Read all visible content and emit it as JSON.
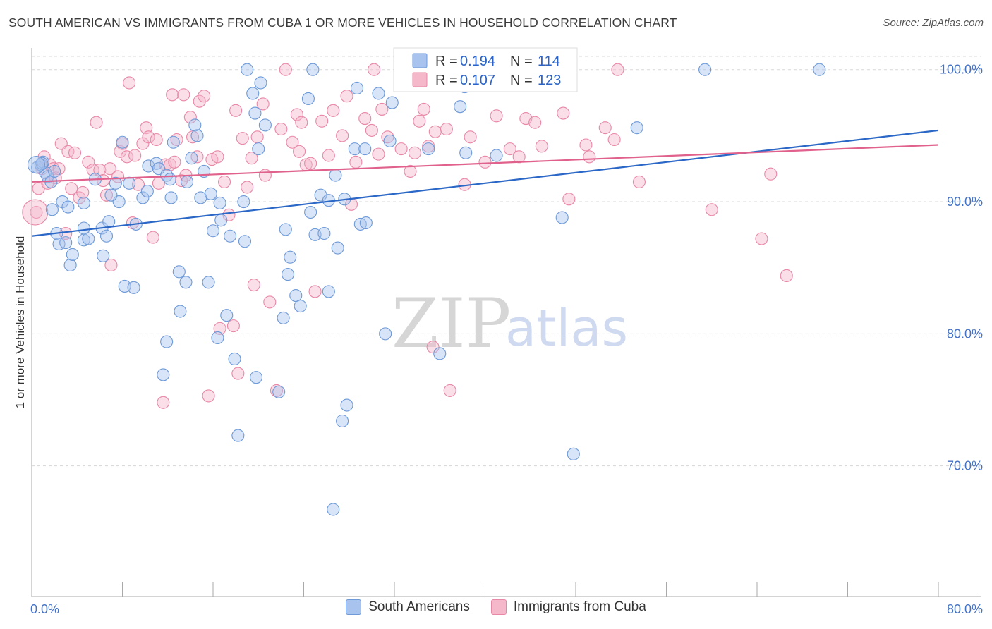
{
  "title": "SOUTH AMERICAN VS IMMIGRANTS FROM CUBA 1 OR MORE VEHICLES IN HOUSEHOLD CORRELATION CHART",
  "source": "Source: ZipAtlas.com",
  "watermark": {
    "zip": "ZIP",
    "atlas": "atlas"
  },
  "colors": {
    "blue_fill": "#a8c4ee",
    "blue_stroke": "#6e9ad8",
    "blue_line": "#2a67c6",
    "pink_fill": "#f5b8cb",
    "pink_stroke": "#e888a6",
    "pink_line": "#e0628c",
    "grid": "#d8d8d8",
    "tick_text": "#4472c4"
  },
  "legend": {
    "series1": "South Americans",
    "series2": "Immigrants from Cuba"
  },
  "stats": {
    "r_label": "R =",
    "n_label": "N =",
    "s1": {
      "r": "0.194",
      "n": "114"
    },
    "s2": {
      "r": "0.107",
      "n": "123"
    }
  },
  "chart_data": {
    "type": "scatter",
    "title": "SOUTH AMERICAN VS IMMIGRANTS FROM CUBA 1 OR MORE VEHICLES IN HOUSEHOLD CORRELATION CHART",
    "xlabel": "",
    "ylabel": "1 or more Vehicles in Household",
    "xlim": [
      0,
      80
    ],
    "ylim": [
      60,
      101
    ],
    "x_tick_labels": [
      "0.0%",
      "80.0%"
    ],
    "y_ticks": [
      70,
      80,
      90,
      100
    ],
    "y_tick_labels": [
      "70.0%",
      "80.0%",
      "90.0%",
      "100.0%"
    ],
    "grid": true,
    "series": [
      {
        "name": "South Americans",
        "color": "#a8c4ee",
        "r": 0.194,
        "n": 114,
        "trend": {
          "x": [
            0,
            80
          ],
          "y": [
            87.4,
            95.4
          ]
        },
        "points": [
          [
            0.5,
            92.6
          ],
          [
            0.8,
            92.8
          ],
          [
            1.0,
            93.0
          ],
          [
            1.2,
            92.2
          ],
          [
            1.4,
            91.9
          ],
          [
            1.7,
            91.5
          ],
          [
            1.8,
            89.4
          ],
          [
            2.2,
            87.6
          ],
          [
            2.4,
            86.8
          ],
          [
            2.7,
            90.0
          ],
          [
            3.0,
            86.9
          ],
          [
            3.2,
            89.6
          ],
          [
            3.4,
            85.2
          ],
          [
            3.6,
            86.0
          ],
          [
            4.6,
            88.0
          ],
          [
            4.6,
            87.1
          ],
          [
            4.6,
            89.9
          ],
          [
            5.6,
            91.7
          ],
          [
            6.2,
            88.0
          ],
          [
            6.3,
            85.9
          ],
          [
            6.6,
            87.4
          ],
          [
            6.8,
            88.5
          ],
          [
            7.4,
            91.4
          ],
          [
            7.7,
            90.0
          ],
          [
            8.0,
            94.5
          ],
          [
            8.2,
            83.6
          ],
          [
            8.6,
            91.4
          ],
          [
            9.0,
            83.5
          ],
          [
            9.2,
            88.3
          ],
          [
            9.8,
            90.3
          ],
          [
            10.2,
            90.8
          ],
          [
            10.3,
            92.7
          ],
          [
            11.0,
            92.9
          ],
          [
            11.2,
            92.5
          ],
          [
            11.9,
            92.0
          ],
          [
            11.9,
            79.4
          ],
          [
            11.6,
            76.9
          ],
          [
            12.2,
            91.7
          ],
          [
            12.3,
            90.3
          ],
          [
            12.5,
            94.5
          ],
          [
            13.0,
            84.7
          ],
          [
            13.1,
            81.7
          ],
          [
            13.6,
            83.9
          ],
          [
            14.1,
            93.3
          ],
          [
            14.4,
            95.8
          ],
          [
            14.6,
            95.0
          ],
          [
            14.9,
            90.3
          ],
          [
            15.2,
            92.3
          ],
          [
            15.6,
            83.9
          ],
          [
            15.8,
            90.6
          ],
          [
            16.0,
            87.8
          ],
          [
            16.4,
            79.7
          ],
          [
            16.6,
            89.9
          ],
          [
            16.7,
            88.6
          ],
          [
            17.2,
            81.4
          ],
          [
            17.5,
            87.4
          ],
          [
            17.9,
            78.1
          ],
          [
            18.2,
            72.3
          ],
          [
            18.7,
            90.0
          ],
          [
            18.8,
            87.0
          ],
          [
            19.0,
            100.0
          ],
          [
            19.5,
            98.2
          ],
          [
            19.7,
            96.7
          ],
          [
            19.8,
            76.7
          ],
          [
            20.2,
            99.0
          ],
          [
            20.6,
            95.8
          ],
          [
            21.8,
            75.6
          ],
          [
            22.2,
            81.2
          ],
          [
            22.4,
            87.9
          ],
          [
            22.6,
            84.5
          ],
          [
            22.8,
            85.8
          ],
          [
            23.3,
            82.9
          ],
          [
            23.7,
            82.1
          ],
          [
            24.4,
            97.8
          ],
          [
            24.6,
            89.2
          ],
          [
            24.8,
            100.0
          ],
          [
            25.0,
            87.5
          ],
          [
            25.5,
            90.5
          ],
          [
            25.8,
            87.6
          ],
          [
            26.2,
            83.2
          ],
          [
            26.2,
            90.1
          ],
          [
            26.6,
            66.7
          ],
          [
            27.0,
            86.5
          ],
          [
            27.4,
            73.4
          ],
          [
            27.6,
            90.2
          ],
          [
            27.8,
            74.6
          ],
          [
            28.5,
            94.0
          ],
          [
            28.7,
            98.6
          ],
          [
            29.0,
            88.3
          ],
          [
            29.4,
            94.0
          ],
          [
            29.5,
            88.4
          ],
          [
            30.6,
            98.2
          ],
          [
            31.2,
            80.0
          ],
          [
            31.6,
            94.6
          ],
          [
            31.8,
            97.5
          ],
          [
            35.0,
            94.0
          ],
          [
            36.0,
            78.5
          ],
          [
            37.8,
            97.2
          ],
          [
            38.3,
            93.7
          ],
          [
            38.2,
            98.7
          ],
          [
            39.6,
            98.8
          ],
          [
            41.0,
            93.5
          ],
          [
            46.8,
            88.8
          ],
          [
            47.8,
            70.9
          ],
          [
            53.4,
            95.6
          ],
          [
            59.4,
            100.0
          ],
          [
            69.5,
            100.0
          ],
          [
            0.9,
            92.9
          ],
          [
            2.0,
            92.3
          ],
          [
            5.0,
            87.2
          ],
          [
            7.0,
            90.5
          ],
          [
            13.7,
            91.5
          ],
          [
            20.0,
            94.0
          ],
          [
            26.8,
            92.0
          ]
        ]
      },
      {
        "name": "Immigrants from Cuba",
        "color": "#f5b8cb",
        "r": 0.107,
        "n": 123,
        "trend": {
          "x": [
            0,
            80
          ],
          "y": [
            91.5,
            94.3
          ]
        },
        "points": [
          [
            0.4,
            89.2
          ],
          [
            0.6,
            91.0
          ],
          [
            0.9,
            92.5
          ],
          [
            1.1,
            93.4
          ],
          [
            1.4,
            91.4
          ],
          [
            1.6,
            92.8
          ],
          [
            1.9,
            92.5
          ],
          [
            2.1,
            91.8
          ],
          [
            2.4,
            92.5
          ],
          [
            2.6,
            94.4
          ],
          [
            3.0,
            87.6
          ],
          [
            3.2,
            93.8
          ],
          [
            3.5,
            91.0
          ],
          [
            3.8,
            93.7
          ],
          [
            4.2,
            90.3
          ],
          [
            4.5,
            90.7
          ],
          [
            5.0,
            93.0
          ],
          [
            5.4,
            92.4
          ],
          [
            5.7,
            96.0
          ],
          [
            6.0,
            92.4
          ],
          [
            6.3,
            91.6
          ],
          [
            6.6,
            90.5
          ],
          [
            6.9,
            92.5
          ],
          [
            7.0,
            85.2
          ],
          [
            7.6,
            91.9
          ],
          [
            7.8,
            93.8
          ],
          [
            8.0,
            94.4
          ],
          [
            8.4,
            93.4
          ],
          [
            8.6,
            99.0
          ],
          [
            8.9,
            88.4
          ],
          [
            9.1,
            93.5
          ],
          [
            9.4,
            91.3
          ],
          [
            9.8,
            94.4
          ],
          [
            10.1,
            95.6
          ],
          [
            10.3,
            94.9
          ],
          [
            10.7,
            87.3
          ],
          [
            11.0,
            94.7
          ],
          [
            11.2,
            91.4
          ],
          [
            11.6,
            74.8
          ],
          [
            11.8,
            92.8
          ],
          [
            12.2,
            92.8
          ],
          [
            12.4,
            98.1
          ],
          [
            12.6,
            93.0
          ],
          [
            12.8,
            94.7
          ],
          [
            13.2,
            91.6
          ],
          [
            13.4,
            98.1
          ],
          [
            13.6,
            92.0
          ],
          [
            14.0,
            96.4
          ],
          [
            14.2,
            94.9
          ],
          [
            14.6,
            93.4
          ],
          [
            14.8,
            97.6
          ],
          [
            15.2,
            98.0
          ],
          [
            15.6,
            75.3
          ],
          [
            15.9,
            93.2
          ],
          [
            16.4,
            93.4
          ],
          [
            16.6,
            80.4
          ],
          [
            17.0,
            91.5
          ],
          [
            17.4,
            89.0
          ],
          [
            17.8,
            80.6
          ],
          [
            18.0,
            96.9
          ],
          [
            18.2,
            77.0
          ],
          [
            18.6,
            94.8
          ],
          [
            19.0,
            91.1
          ],
          [
            19.4,
            93.3
          ],
          [
            19.6,
            83.7
          ],
          [
            19.9,
            94.9
          ],
          [
            20.4,
            97.4
          ],
          [
            20.6,
            92.0
          ],
          [
            21.0,
            82.4
          ],
          [
            21.6,
            75.7
          ],
          [
            22.0,
            95.5
          ],
          [
            22.4,
            100.0
          ],
          [
            23.0,
            94.5
          ],
          [
            23.4,
            96.6
          ],
          [
            23.6,
            93.8
          ],
          [
            23.8,
            96.0
          ],
          [
            24.2,
            92.8
          ],
          [
            24.6,
            92.9
          ],
          [
            25.0,
            83.2
          ],
          [
            25.6,
            96.1
          ],
          [
            26.2,
            93.5
          ],
          [
            26.6,
            96.9
          ],
          [
            27.4,
            95.0
          ],
          [
            27.8,
            98.0
          ],
          [
            28.2,
            89.8
          ],
          [
            28.6,
            93.0
          ],
          [
            29.4,
            96.3
          ],
          [
            30.0,
            95.4
          ],
          [
            30.2,
            100.0
          ],
          [
            30.6,
            93.6
          ],
          [
            30.9,
            97.0
          ],
          [
            31.4,
            94.9
          ],
          [
            32.6,
            94.0
          ],
          [
            33.4,
            92.3
          ],
          [
            33.8,
            93.7
          ],
          [
            34.2,
            96.1
          ],
          [
            34.6,
            97.0
          ],
          [
            35.0,
            94.2
          ],
          [
            35.4,
            79.0
          ],
          [
            35.6,
            95.3
          ],
          [
            36.6,
            95.5
          ],
          [
            36.9,
            75.7
          ],
          [
            38.2,
            91.3
          ],
          [
            38.7,
            94.9
          ],
          [
            40.0,
            93.0
          ],
          [
            41.0,
            96.5
          ],
          [
            42.2,
            94.0
          ],
          [
            43.0,
            93.4
          ],
          [
            43.6,
            96.3
          ],
          [
            44.4,
            96.0
          ],
          [
            45.0,
            94.2
          ],
          [
            46.9,
            96.7
          ],
          [
            47.4,
            90.2
          ],
          [
            48.9,
            94.3
          ],
          [
            49.2,
            93.4
          ],
          [
            50.6,
            95.6
          ],
          [
            51.4,
            94.7
          ],
          [
            51.7,
            100.0
          ],
          [
            53.6,
            91.5
          ],
          [
            60.0,
            89.4
          ],
          [
            64.4,
            87.2
          ],
          [
            65.2,
            92.1
          ],
          [
            66.6,
            84.4
          ]
        ]
      }
    ]
  }
}
